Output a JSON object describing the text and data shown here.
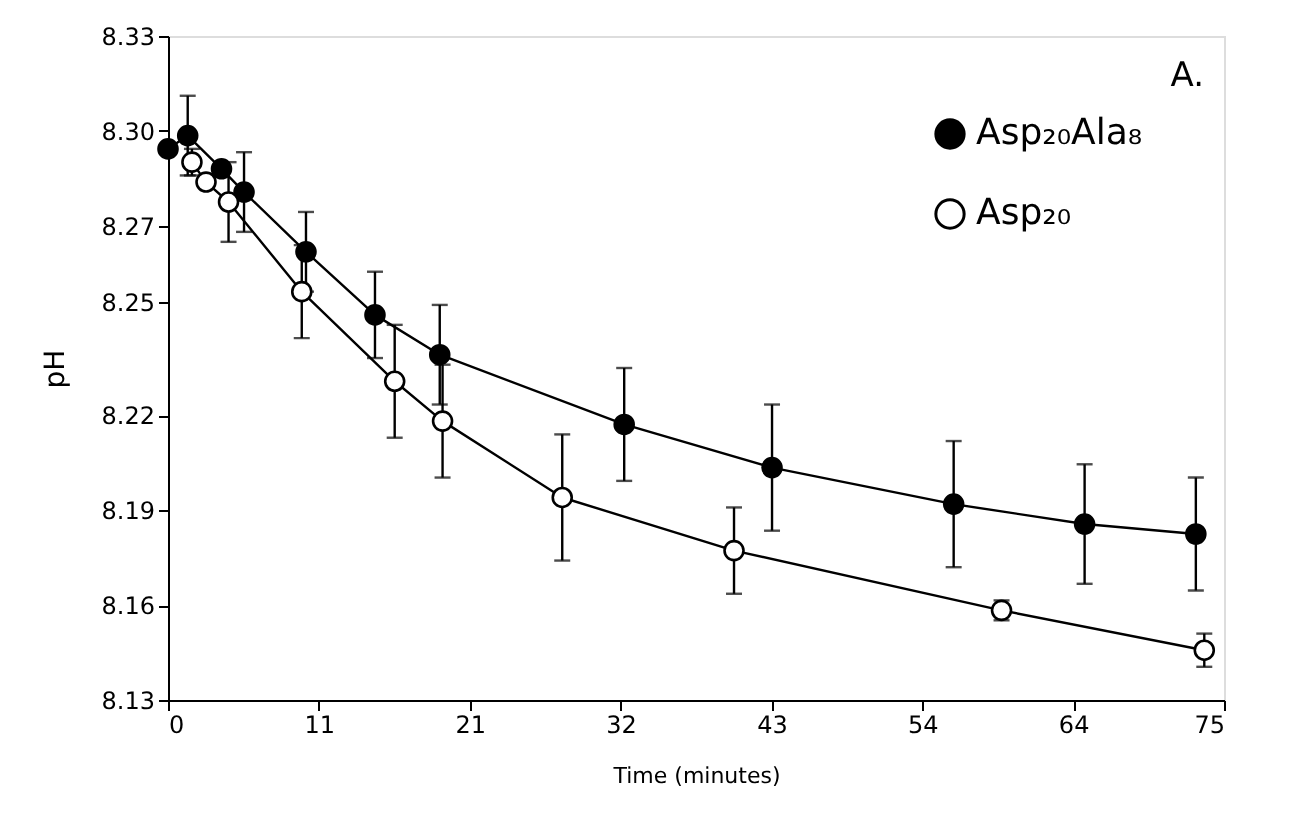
{
  "chart_data": {
    "type": "line",
    "xlabel": "Time (minutes)",
    "ylabel": "pH",
    "annotations": [
      "A."
    ],
    "xlim": [
      0,
      75
    ],
    "ylim": [
      8.13,
      8.33
    ],
    "xticks": [
      0,
      {
        "value": 10.714,
        "label": "11"
      },
      {
        "value": 21.429,
        "label": "21"
      },
      {
        "value": 32.143,
        "label": "32"
      },
      {
        "value": 42.857,
        "label": "43"
      },
      {
        "value": 53.571,
        "label": "54"
      },
      {
        "value": 64.286,
        "label": "64"
      },
      75
    ],
    "yticks": [
      8.13,
      {
        "value": 8.1586,
        "label": "8.16"
      },
      {
        "value": 8.1871,
        "label": "8.19"
      },
      {
        "value": 8.2157,
        "label": "8.22"
      },
      8.25,
      {
        "value": 8.2729,
        "label": "8.27"
      },
      {
        "value": 8.3014,
        "label": "8.30"
      },
      8.33
    ],
    "grid": false,
    "legend": "top right",
    "marker": "circle",
    "line_style": "solid",
    "series": [
      {
        "name": "Asp₂₀Ala₈",
        "color": "#000000",
        "x": [
          0,
          1.4,
          3.8,
          5.4,
          9.8,
          14.7,
          19.3,
          32.4,
          42.9,
          55.8,
          65.1,
          73.0
        ],
        "values": [
          8.296,
          8.3,
          8.29,
          8.283,
          8.265,
          8.246,
          8.234,
          8.213,
          8.2,
          8.189,
          8.183,
          8.18
        ],
        "errors": [
          null,
          0.012,
          null,
          0.012,
          0.012,
          0.013,
          0.015,
          0.017,
          0.019,
          0.019,
          0.018,
          0.017
        ]
      },
      {
        "name": "Asp₂₀",
        "color": "#000000",
        "x": [
          1.7,
          2.7,
          4.3,
          9.5,
          16.1,
          19.5,
          28.0,
          40.2,
          59.2,
          73.6
        ],
        "values": [
          8.292,
          8.286,
          8.28,
          8.253,
          8.226,
          8.214,
          8.191,
          8.175,
          8.157,
          8.145
        ],
        "errors": [
          0.004,
          null,
          0.012,
          0.014,
          0.017,
          0.017,
          0.019,
          0.013,
          0.003,
          0.005
        ]
      }
    ]
  }
}
